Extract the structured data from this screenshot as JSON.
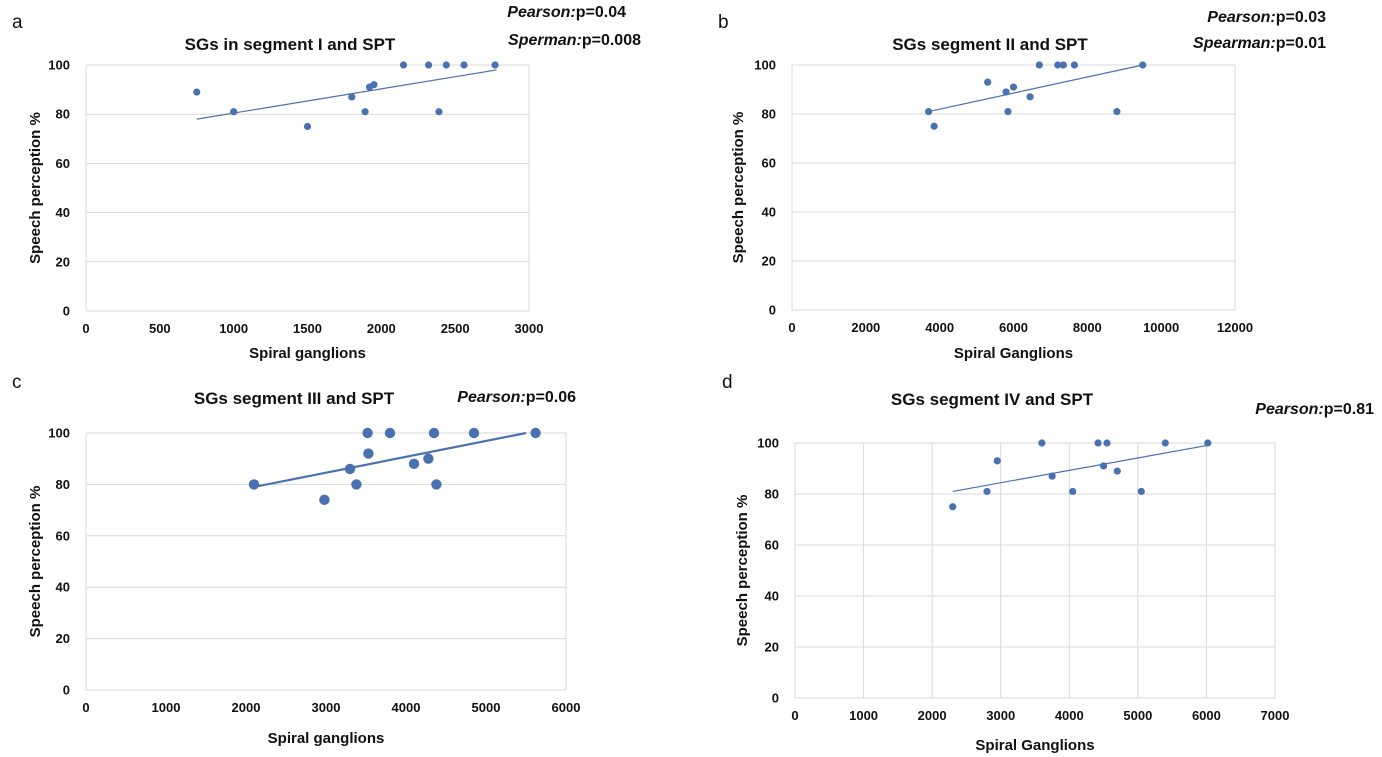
{
  "chart_data": [
    {
      "type": "scatter",
      "letter": "a",
      "title": "SGs in segment I and SPT",
      "xlabel": "Spiral ganglions",
      "ylabel": "Speech perception %",
      "xlim": [
        0,
        3000
      ],
      "ylim": [
        0,
        100
      ],
      "xticks": [
        "0",
        "500",
        "1000",
        "1500",
        "2000",
        "2500",
        "3000"
      ],
      "yticks": [
        "0",
        "20",
        "40",
        "60",
        "80",
        "100"
      ],
      "grid": "horizontal",
      "stats": [
        {
          "name": "Pearson:",
          "value": "p=0.04"
        },
        {
          "name": "Sperman:",
          "value": "p=0.008"
        }
      ],
      "trendline": {
        "x": [
          750,
          2780
        ],
        "y": [
          78,
          98
        ]
      },
      "points": [
        {
          "x": 750,
          "y": 89
        },
        {
          "x": 1000,
          "y": 81
        },
        {
          "x": 1500,
          "y": 75
        },
        {
          "x": 1800,
          "y": 87
        },
        {
          "x": 1890,
          "y": 81
        },
        {
          "x": 1920,
          "y": 91
        },
        {
          "x": 1950,
          "y": 92
        },
        {
          "x": 2150,
          "y": 100
        },
        {
          "x": 2320,
          "y": 100
        },
        {
          "x": 2390,
          "y": 81
        },
        {
          "x": 2440,
          "y": 100
        },
        {
          "x": 2560,
          "y": 100
        },
        {
          "x": 2770,
          "y": 100
        }
      ],
      "color": "#4a72b0"
    },
    {
      "type": "scatter",
      "letter": "b",
      "title": "SGs segment II and SPT",
      "xlabel": "Spiral Ganglions",
      "ylabel": "Speech perception %",
      "xlim": [
        0,
        12000
      ],
      "ylim": [
        0,
        100
      ],
      "xticks": [
        "0",
        "2000",
        "4000",
        "6000",
        "8000",
        "10000",
        "12000"
      ],
      "yticks": [
        "0",
        "20",
        "40",
        "60",
        "80",
        "100"
      ],
      "grid": "horizontal",
      "stats": [
        {
          "name": "Pearson:",
          "value": "p=0.03"
        },
        {
          "name": "Spearman:",
          "value": "p=0.01"
        }
      ],
      "trendline": {
        "x": [
          3700,
          9500
        ],
        "y": [
          81,
          100
        ]
      },
      "points": [
        {
          "x": 3700,
          "y": 81
        },
        {
          "x": 3850,
          "y": 75
        },
        {
          "x": 5300,
          "y": 93
        },
        {
          "x": 5800,
          "y": 89
        },
        {
          "x": 5850,
          "y": 81
        },
        {
          "x": 6000,
          "y": 91
        },
        {
          "x": 6450,
          "y": 87
        },
        {
          "x": 6700,
          "y": 100
        },
        {
          "x": 7200,
          "y": 100
        },
        {
          "x": 7350,
          "y": 100
        },
        {
          "x": 7650,
          "y": 100
        },
        {
          "x": 8800,
          "y": 81
        },
        {
          "x": 9500,
          "y": 100
        }
      ],
      "color": "#4a72b0"
    },
    {
      "type": "scatter",
      "letter": "c",
      "title": "SGs segment III and SPT",
      "xlabel": "Spiral ganglions",
      "ylabel": "Speech perception %",
      "xlim": [
        0,
        6000
      ],
      "ylim": [
        0,
        100
      ],
      "xticks": [
        "0",
        "1000",
        "2000",
        "3000",
        "4000",
        "5000",
        "6000"
      ],
      "yticks": [
        "0",
        "20",
        "40",
        "60",
        "80",
        "100"
      ],
      "grid": "horizontal",
      "stats": [
        {
          "name": "Pearson:",
          "value": "p=0.06"
        }
      ],
      "trendline": {
        "x": [
          2100,
          5500
        ],
        "y": [
          79,
          100
        ]
      },
      "points": [
        {
          "x": 2100,
          "y": 80
        },
        {
          "x": 2980,
          "y": 74
        },
        {
          "x": 3300,
          "y": 86
        },
        {
          "x": 3380,
          "y": 80
        },
        {
          "x": 3520,
          "y": 100
        },
        {
          "x": 3530,
          "y": 92
        },
        {
          "x": 3800,
          "y": 100
        },
        {
          "x": 4100,
          "y": 88
        },
        {
          "x": 4280,
          "y": 90
        },
        {
          "x": 4350,
          "y": 100
        },
        {
          "x": 4380,
          "y": 80
        },
        {
          "x": 4850,
          "y": 100
        },
        {
          "x": 5620,
          "y": 100
        }
      ],
      "color": "#4a72b0"
    },
    {
      "type": "scatter",
      "letter": "d",
      "title": "SGs segment IV and SPT",
      "xlabel": "Spiral Ganglions",
      "ylabel": "Speech perception %",
      "xlim": [
        0,
        7000
      ],
      "ylim": [
        0,
        100
      ],
      "xticks": [
        "0",
        "1000",
        "2000",
        "3000",
        "4000",
        "5000",
        "6000",
        "7000"
      ],
      "yticks": [
        "0",
        "20",
        "40",
        "60",
        "80",
        "100"
      ],
      "grid": "both",
      "stats": [
        {
          "name": "Pearson:",
          "value": "p=0.81"
        }
      ],
      "trendline": {
        "x": [
          2300,
          6000
        ],
        "y": [
          81,
          99
        ]
      },
      "points": [
        {
          "x": 2300,
          "y": 75
        },
        {
          "x": 2800,
          "y": 81
        },
        {
          "x": 2950,
          "y": 93
        },
        {
          "x": 3600,
          "y": 100
        },
        {
          "x": 3750,
          "y": 87
        },
        {
          "x": 4050,
          "y": 81
        },
        {
          "x": 4420,
          "y": 100
        },
        {
          "x": 4500,
          "y": 91
        },
        {
          "x": 4550,
          "y": 100
        },
        {
          "x": 4700,
          "y": 89
        },
        {
          "x": 5050,
          "y": 81
        },
        {
          "x": 5400,
          "y": 100
        },
        {
          "x": 6020,
          "y": 100
        }
      ],
      "color": "#4a72b0"
    }
  ]
}
